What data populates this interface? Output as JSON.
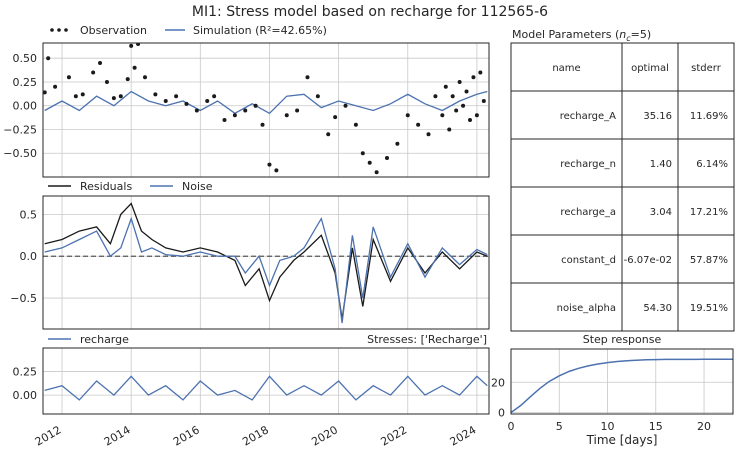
{
  "title": "MI1: Stress model based on recharge for 112565-6",
  "colors": {
    "model": "#4c72b0",
    "obs": "#1a1a1a",
    "grid": "#c8c8c8",
    "frame": "#262626",
    "zero": "#555555"
  },
  "panels": {
    "sim": {
      "legend": [
        "Observation",
        "Simulation (R²=42.65%)"
      ],
      "ylim": [
        -0.75,
        0.66
      ],
      "yticks": [
        "0.50",
        "0.25",
        "0.00",
        "−0.25",
        "−0.50"
      ],
      "ytick_values": [
        0.5,
        0.25,
        0,
        -0.25,
        -0.5
      ]
    },
    "res": {
      "legend": [
        "Residuals",
        "Noise"
      ],
      "ylim": [
        -0.87,
        0.72
      ],
      "yticks": [
        "0.5",
        "0.0",
        "−0.5"
      ],
      "ytick_values": [
        0.5,
        0,
        -0.5
      ]
    },
    "stress": {
      "legend": [
        "recharge"
      ],
      "right_label": "Stresses: ['Recharge']",
      "ylim": [
        -0.2,
        0.5
      ],
      "yticks": [
        "0.25",
        "0.00"
      ],
      "ytick_values": [
        0.25,
        0
      ]
    },
    "table": {
      "title": "Model Parameters (n_c=5)",
      "columns": [
        "name",
        "optimal",
        "stderr"
      ],
      "rows": [
        [
          "recharge_A",
          "35.16",
          "11.69%"
        ],
        [
          "recharge_n",
          "1.40",
          "6.14%"
        ],
        [
          "recharge_a",
          "3.04",
          "17.21%"
        ],
        [
          "constant_d",
          "-6.07e-02",
          "57.87%"
        ],
        [
          "noise_alpha",
          "54.30",
          "19.51%"
        ]
      ]
    },
    "step": {
      "title": "Step response",
      "xlabel": "Time [days]",
      "xlim": [
        0,
        23
      ],
      "ylim": [
        -1,
        42
      ],
      "xticks": [
        "0",
        "5",
        "10",
        "15",
        "20"
      ],
      "xtick_values": [
        0,
        5,
        10,
        15,
        20
      ],
      "yticks": [
        "20",
        "0"
      ],
      "ytick_values": [
        20,
        0
      ]
    }
  },
  "time_axis": {
    "xlim": [
      2011.45,
      2024.35
    ],
    "ticks": [
      "2012",
      "2014",
      "2016",
      "2018",
      "2020",
      "2022",
      "2024"
    ],
    "tick_values": [
      2012,
      2014,
      2016,
      2018,
      2020,
      2022,
      2024
    ]
  },
  "chart_data": [
    {
      "type": "scatter",
      "name": "Observation",
      "ylim": [
        -0.75,
        0.66
      ],
      "x": [
        2011.5,
        2011.6,
        2011.8,
        2012.2,
        2012.4,
        2012.6,
        2012.9,
        2013.1,
        2013.3,
        2013.5,
        2013.7,
        2013.9,
        2014.0,
        2014.1,
        2014.2,
        2014.4,
        2014.7,
        2015.0,
        2015.3,
        2015.6,
        2015.9,
        2016.2,
        2016.4,
        2016.7,
        2017.0,
        2017.3,
        2017.6,
        2017.8,
        2018.0,
        2018.2,
        2018.5,
        2018.8,
        2019.1,
        2019.4,
        2019.7,
        2019.9,
        2020.2,
        2020.5,
        2020.7,
        2020.9,
        2021.1,
        2021.4,
        2021.7,
        2022.0,
        2022.3,
        2022.6,
        2022.8,
        2023.0,
        2023.1,
        2023.2,
        2023.3,
        2023.4,
        2023.5,
        2023.6,
        2023.7,
        2023.8,
        2023.9,
        2024.0,
        2024.1,
        2024.2
      ],
      "y": [
        0.14,
        0.5,
        0.2,
        0.3,
        0.1,
        0.12,
        0.35,
        0.45,
        0.25,
        0.08,
        0.1,
        0.28,
        0.63,
        0.4,
        0.65,
        0.3,
        0.12,
        0.05,
        0.1,
        0.02,
        -0.05,
        0.05,
        0.1,
        -0.15,
        -0.1,
        -0.05,
        0.0,
        -0.2,
        -0.62,
        -0.68,
        -0.1,
        -0.05,
        0.3,
        0.1,
        -0.3,
        -0.12,
        0.0,
        -0.2,
        -0.5,
        -0.6,
        -0.7,
        -0.55,
        -0.4,
        -0.1,
        -0.2,
        -0.3,
        0.1,
        -0.1,
        0.2,
        -0.25,
        0.1,
        -0.05,
        0.25,
        0.0,
        0.15,
        -0.15,
        0.3,
        -0.1,
        0.35,
        0.05
      ]
    },
    {
      "type": "line",
      "name": "Simulation (R²=42.65%)",
      "ylim": [
        -0.75,
        0.66
      ],
      "x": [
        2011.5,
        2012.0,
        2012.5,
        2013.0,
        2013.5,
        2014.0,
        2014.5,
        2015.0,
        2015.5,
        2016.0,
        2016.5,
        2017.0,
        2017.5,
        2018.0,
        2018.5,
        2019.0,
        2019.5,
        2020.0,
        2020.5,
        2021.0,
        2021.5,
        2022.0,
        2022.5,
        2023.0,
        2023.5,
        2024.0,
        2024.3
      ],
      "y": [
        -0.05,
        0.05,
        -0.05,
        0.1,
        0.0,
        0.15,
        0.05,
        0.0,
        0.05,
        -0.05,
        0.05,
        -0.08,
        0.02,
        -0.08,
        0.1,
        0.12,
        -0.02,
        0.05,
        0.0,
        -0.05,
        0.02,
        0.12,
        0.02,
        -0.05,
        0.05,
        0.12,
        0.15
      ]
    },
    {
      "type": "line",
      "name": "Residuals",
      "ylim": [
        -0.87,
        0.72
      ],
      "x": [
        2011.5,
        2012.0,
        2012.5,
        2013.0,
        2013.4,
        2013.7,
        2014.0,
        2014.3,
        2014.6,
        2015.0,
        2015.5,
        2016.0,
        2016.5,
        2017.0,
        2017.3,
        2017.7,
        2018.0,
        2018.3,
        2018.7,
        2019.0,
        2019.5,
        2019.9,
        2020.1,
        2020.4,
        2020.7,
        2021.0,
        2021.5,
        2022.0,
        2022.5,
        2023.0,
        2023.5,
        2024.0,
        2024.3
      ],
      "y": [
        0.15,
        0.2,
        0.3,
        0.35,
        0.15,
        0.5,
        0.63,
        0.3,
        0.2,
        0.1,
        0.05,
        0.1,
        0.05,
        -0.05,
        -0.35,
        -0.15,
        -0.53,
        -0.25,
        -0.05,
        0.05,
        0.25,
        -0.2,
        -0.75,
        0.1,
        -0.6,
        0.2,
        -0.3,
        0.1,
        -0.2,
        0.05,
        -0.15,
        0.05,
        0.0
      ]
    },
    {
      "type": "line",
      "name": "Noise",
      "ylim": [
        -0.87,
        0.72
      ],
      "x": [
        2011.5,
        2012.0,
        2012.5,
        2013.0,
        2013.4,
        2013.7,
        2014.0,
        2014.3,
        2014.6,
        2015.0,
        2015.5,
        2016.0,
        2016.5,
        2017.0,
        2017.3,
        2017.7,
        2018.0,
        2018.3,
        2018.7,
        2019.0,
        2019.5,
        2019.9,
        2020.1,
        2020.4,
        2020.7,
        2021.0,
        2021.5,
        2022.0,
        2022.5,
        2023.0,
        2023.5,
        2024.0,
        2024.3
      ],
      "y": [
        0.05,
        0.1,
        0.2,
        0.3,
        0.0,
        0.1,
        0.45,
        0.05,
        0.1,
        0.02,
        0.0,
        0.05,
        0.0,
        0.0,
        -0.2,
        0.0,
        -0.35,
        -0.05,
        0.0,
        0.1,
        0.45,
        -0.15,
        -0.8,
        0.25,
        -0.5,
        0.35,
        -0.25,
        0.15,
        -0.25,
        0.1,
        -0.1,
        0.08,
        0.02
      ]
    },
    {
      "type": "line",
      "name": "recharge",
      "ylim": [
        -0.2,
        0.5
      ],
      "x": [
        2011.5,
        2012.0,
        2012.5,
        2013.0,
        2013.5,
        2014.0,
        2014.5,
        2015.0,
        2015.5,
        2016.0,
        2016.5,
        2017.0,
        2017.5,
        2018.0,
        2018.5,
        2019.0,
        2019.5,
        2020.0,
        2020.5,
        2021.0,
        2021.5,
        2022.0,
        2022.5,
        2023.0,
        2023.5,
        2024.0,
        2024.3
      ],
      "y": [
        0.05,
        0.1,
        -0.05,
        0.15,
        0.0,
        0.2,
        0.0,
        0.1,
        -0.05,
        0.15,
        0.0,
        0.05,
        -0.05,
        0.2,
        0.0,
        0.1,
        0.0,
        0.15,
        -0.05,
        0.1,
        0.0,
        0.2,
        0.0,
        0.1,
        0.0,
        0.2,
        0.1
      ]
    },
    {
      "type": "line",
      "name": "Step response",
      "xlabel": "Time [days]",
      "xlim": [
        0,
        23
      ],
      "ylim": [
        -1,
        42
      ],
      "x": [
        0,
        1,
        2,
        3,
        4,
        5,
        6,
        7,
        8,
        9,
        10,
        11,
        12,
        13,
        14,
        15,
        16,
        17,
        18,
        19,
        20,
        21,
        22,
        23
      ],
      "y": [
        0,
        4.6,
        10.4,
        16.0,
        20.7,
        24.3,
        27.1,
        29.2,
        30.8,
        32.1,
        33.0,
        33.7,
        34.2,
        34.6,
        34.85,
        35.0,
        35.1,
        35.12,
        35.14,
        35.15,
        35.155,
        35.16,
        35.16,
        35.16
      ]
    }
  ]
}
